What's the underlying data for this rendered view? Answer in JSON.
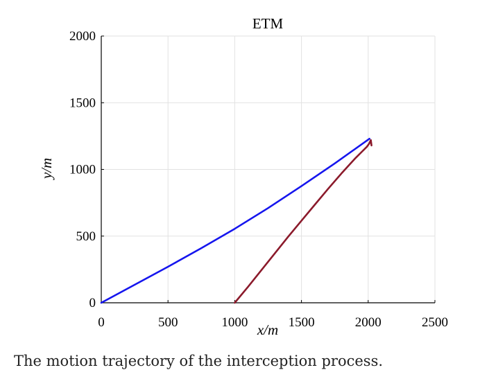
{
  "chart_data": {
    "type": "line",
    "title": "ETM",
    "xlabel": "x/m",
    "ylabel": "y/m",
    "xlim": [
      0,
      2500
    ],
    "ylim": [
      0,
      2000
    ],
    "xticks": [
      "0",
      "500",
      "1000",
      "1500",
      "2000",
      "2500"
    ],
    "yticks": [
      "0",
      "500",
      "1000",
      "1500",
      "2000"
    ],
    "grid": true,
    "legend": "none",
    "series": [
      {
        "color": "#1515ee",
        "x": [
          0,
          250,
          500,
          750,
          1000,
          1250,
          1500,
          1750,
          2010
        ],
        "y": [
          0,
          135,
          270,
          410,
          555,
          710,
          875,
          1045,
          1230
        ]
      },
      {
        "color": "#8b1a2b",
        "x": [
          1000,
          1100,
          1200,
          1300,
          1400,
          1500,
          1600,
          1700,
          1800,
          1900,
          1950,
          1990,
          2005,
          2015,
          2020,
          2025,
          2020
        ],
        "y": [
          0,
          120,
          245,
          370,
          495,
          615,
          735,
          855,
          970,
          1080,
          1130,
          1170,
          1190,
          1210,
          1220,
          1180,
          1210
        ]
      }
    ]
  },
  "caption": "The motion trajectory of the interception process."
}
